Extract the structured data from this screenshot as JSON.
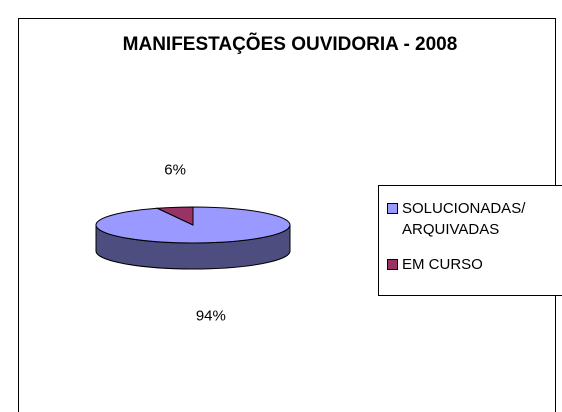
{
  "chart_data": {
    "type": "pie",
    "title": "MANIFESTAÇÕES OUVIDORIA - 2008",
    "categories": [
      "SOLUCIONADAS/ ARQUIVADAS",
      "EM CURSO"
    ],
    "values": [
      94,
      6
    ],
    "value_labels": [
      "94%",
      "6%"
    ],
    "colors": [
      "#9999ff",
      "#993366"
    ],
    "legend": "right"
  }
}
